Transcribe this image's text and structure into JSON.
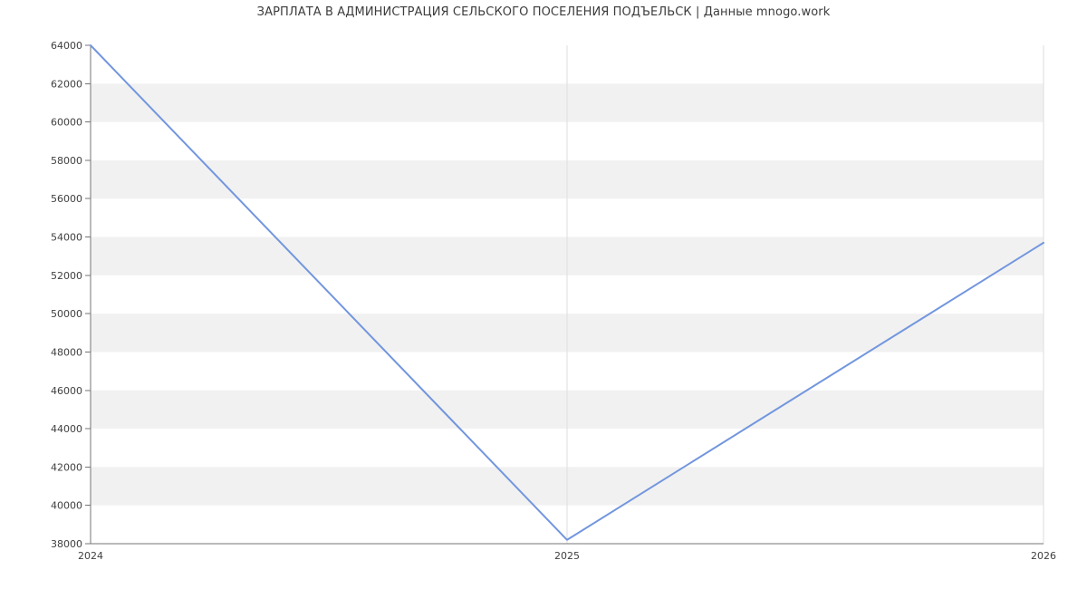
{
  "chart_data": {
    "type": "line",
    "title": "ЗАРПЛАТА В АДМИНИСТРАЦИЯ СЕЛЬСКОГО ПОСЕЛЕНИЯ ПОДЪЕЛЬСК | Данные mnogo.work",
    "x_labels": [
      "2024",
      "2025",
      "2026"
    ],
    "series": [
      {
        "name": "salary",
        "values": [
          64000,
          38200,
          53700
        ]
      }
    ],
    "ylim": [
      38000,
      64000
    ],
    "y_tick_step": 2000,
    "y_tick_labels": [
      "38000",
      "40000",
      "42000",
      "44000",
      "46000",
      "48000",
      "50000",
      "52000",
      "54000",
      "56000",
      "58000",
      "60000",
      "62000",
      "64000"
    ],
    "grid": true,
    "legend": "none",
    "band_pattern": "alternating horizontal bands every 2000, white at top",
    "colors": {
      "line": "#7296de",
      "band": "#f1f1f1",
      "gridline": "#dedede",
      "axis": "#757575",
      "tick_text": "#404040",
      "title_text": "#3c3c3c",
      "background": "#ffffff"
    }
  }
}
